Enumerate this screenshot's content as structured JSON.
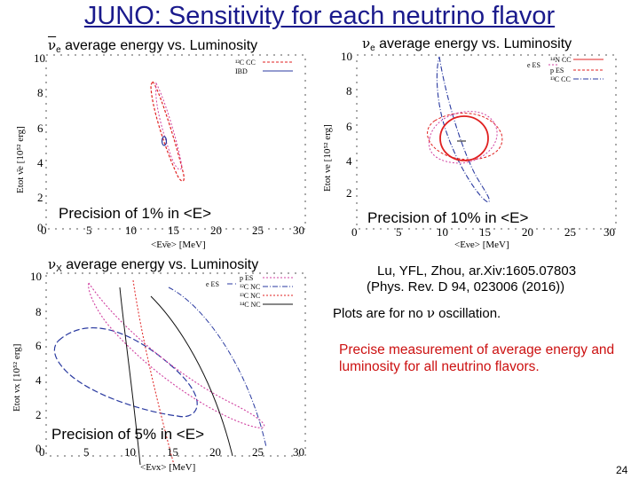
{
  "slide": {
    "title": "JUNO: Sensitivity for each neutrino flavor",
    "page_number": "24"
  },
  "panels": {
    "antinue": {
      "title_symbol": "ν",
      "title_sub": "e",
      "title_text": " average energy vs. Luminosity",
      "precision_prefix": "Precision of ",
      "precision_value": "1%",
      "precision_suffix": " in <E>",
      "legend": [
        "¹²C CC",
        "IBD"
      ]
    },
    "nue": {
      "title_symbol": "ν",
      "title_sub": "e",
      "title_text": " average energy vs. Luminosity",
      "precision_prefix": "Precision of ",
      "precision_value": "10%",
      "precision_suffix": " in <E>",
      "legend": [
        "e ES",
        "¹⁴N CC",
        "p ES",
        "¹³C CC"
      ]
    },
    "nux": {
      "title_symbol": "ν",
      "title_sub": "X",
      "title_text": " average energy vs. Luminosity",
      "precision_prefix": "Precision of ",
      "precision_value": "5%",
      "precision_suffix": " in <E>",
      "legend": [
        "e ES",
        "p ES",
        "¹²C NC",
        "¹³C NC",
        "¹⁴C NC"
      ]
    }
  },
  "notes": {
    "reference_line1": "Lu, YFL, Zhou, ar.Xiv:1605.07803",
    "reference_line2": "(Phys. Rev. D 94, 023006 (2016))",
    "oscillation_prefix": "Plots are for no ",
    "oscillation_symbol": "ν",
    "oscillation_suffix": " oscillation.",
    "highlight": "Precise measurement of average energy and luminosity for all neutrino flavors."
  },
  "axes": {
    "x_ticks": [
      "0",
      "5",
      "10",
      "15",
      "20",
      "25",
      "30"
    ],
    "y_ticks": [
      "0",
      "2",
      "4",
      "6",
      "8",
      "10"
    ],
    "x_label_antinue": "<Eν̄e> [MeV]",
    "x_label_nue": "<Eνe> [MeV]",
    "x_label_nux": "<Eνx> [MeV]",
    "y_label_antinue": "Etot ν̄e [10⁵² erg]",
    "y_label_nue": "Etot νe [10⁵² erg]",
    "y_label_nux": "Etot νx [10⁵² erg]"
  },
  "colors": {
    "title": "#1a1a8c",
    "highlight": "#cc1111",
    "red_curve": "#e02020",
    "blue_curve": "#2a3aa0",
    "pink_curve": "#d040a0",
    "black_curve": "#111111"
  }
}
